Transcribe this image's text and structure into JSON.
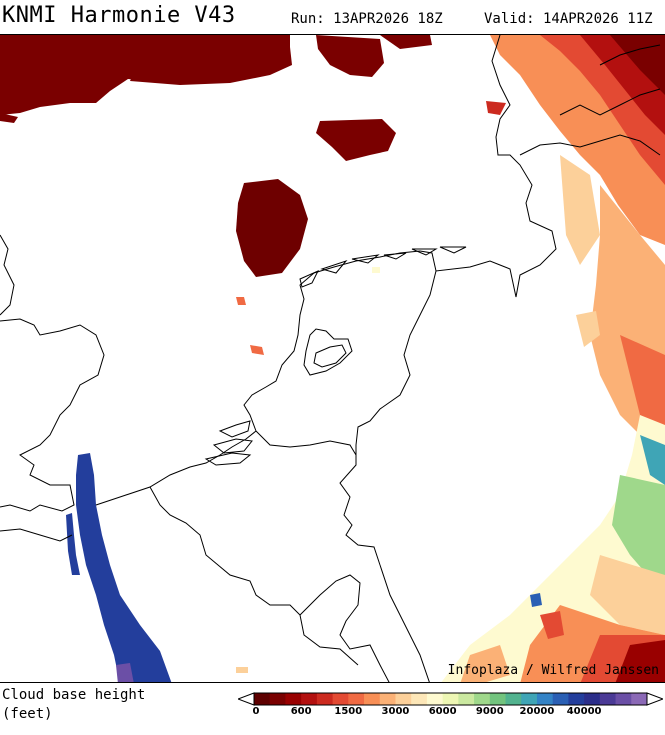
{
  "header": {
    "title": "KNMI Harmonie V43",
    "run": "Run: 13APR2026 18Z",
    "valid": "Valid: 14APR2026 11Z"
  },
  "map": {
    "credit": "Infoplaza / Wilfred Janssen"
  },
  "legend": {
    "label_line1": "Cloud base height",
    "label_line2": "(feet)",
    "ticks": [
      "0",
      "600",
      "1500",
      "3000",
      "6000",
      "9000",
      "20000",
      "40000"
    ],
    "colors": [
      "#5e0000",
      "#7a0000",
      "#990000",
      "#b3100f",
      "#cc2a1f",
      "#e34a33",
      "#f06a43",
      "#f88f56",
      "#fbb176",
      "#fcd09a",
      "#fde7b8",
      "#fefad0",
      "#eef7b4",
      "#cbe9a0",
      "#9fd88b",
      "#72c47e",
      "#52b38f",
      "#3fa5b6",
      "#3383c6",
      "#2a5fb4",
      "#233e9c",
      "#2b2e8a",
      "#4b3a96",
      "#6b4fa6",
      "#8b69b6"
    ]
  }
}
